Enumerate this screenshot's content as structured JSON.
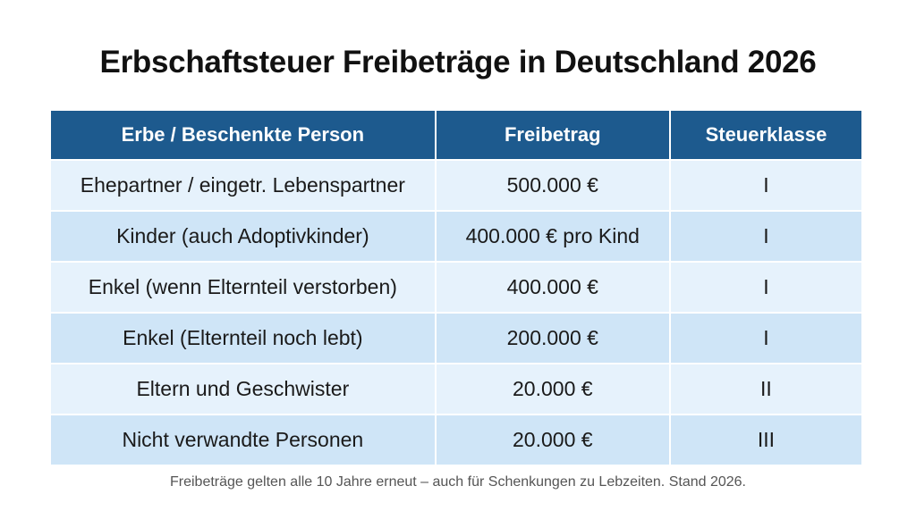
{
  "title": "Erbschaftsteuer Freibeträge in Deutschland 2026",
  "table": {
    "headers": [
      "Erbe / Beschenkte Person",
      "Freibetrag",
      "Steuerklasse"
    ],
    "rows": [
      [
        "Ehepartner / eingetr. Lebenspartner",
        "500.000 €",
        "I"
      ],
      [
        "Kinder (auch Adoptivkinder)",
        "400.000 € pro Kind",
        "I"
      ],
      [
        "Enkel (wenn Elternteil verstorben)",
        "400.000 €",
        "I"
      ],
      [
        "Enkel (Elternteil noch lebt)",
        "200.000 €",
        "I"
      ],
      [
        "Eltern und Geschwister",
        "20.000 €",
        "II"
      ],
      [
        "Nicht verwandte Personen",
        "20.000 €",
        "III"
      ]
    ]
  },
  "footer": "Freibeträge gelten alle 10 Jahre erneut – auch für Schenkungen zu Lebzeiten. Stand 2026.",
  "colors": {
    "header": "#1d5a8e",
    "row_light": "#e6f2fc",
    "row_dark": "#cfe5f7"
  }
}
